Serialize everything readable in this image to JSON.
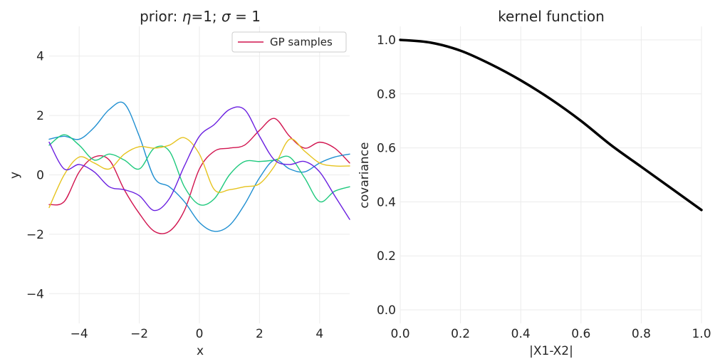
{
  "chart_data": [
    {
      "type": "line",
      "title_prefix": "prior: ",
      "title_eta": "η",
      "title_eq1": "=1; ",
      "title_sigma": "σ",
      "title_eq2": " = 1",
      "xlabel": "x",
      "ylabel": "y",
      "xlim": [
        -5,
        5
      ],
      "ylim": [
        -5,
        5
      ],
      "xticks": [
        -4,
        -2,
        0,
        2,
        4
      ],
      "xtick_labels": [
        "−4",
        "−2",
        "0",
        "2",
        "4"
      ],
      "yticks": [
        -4,
        -2,
        0,
        2,
        4
      ],
      "ytick_labels": [
        "−4",
        "−2",
        "0",
        "2",
        "4"
      ],
      "grid": true,
      "legend": {
        "placement": "top-right",
        "label": "GP samples",
        "color": "#d1144f"
      },
      "series": [
        {
          "name": "sample-red",
          "color": "#d1144f",
          "x": [
            -5,
            -4.5,
            -4,
            -3.5,
            -3,
            -2.5,
            -2,
            -1.5,
            -1,
            -0.5,
            0,
            0.5,
            1,
            1.5,
            2,
            2.5,
            3,
            3.5,
            4,
            4.5,
            5
          ],
          "y": [
            -1.0,
            -0.9,
            0.1,
            0.6,
            0.5,
            -0.5,
            -1.3,
            -1.9,
            -1.9,
            -1.2,
            0.2,
            0.8,
            0.9,
            1.0,
            1.5,
            1.9,
            1.3,
            0.9,
            1.1,
            0.9,
            0.4
          ]
        },
        {
          "name": "sample-blue",
          "color": "#1f8fd1",
          "x": [
            -5,
            -4.5,
            -4,
            -3.5,
            -3,
            -2.5,
            -2,
            -1.5,
            -1,
            -0.5,
            0,
            0.5,
            1,
            1.5,
            2,
            2.5,
            3,
            3.5,
            4,
            4.5,
            5
          ],
          "y": [
            1.2,
            1.3,
            1.2,
            1.6,
            2.2,
            2.4,
            1.3,
            -0.1,
            -0.4,
            -0.9,
            -1.6,
            -1.9,
            -1.7,
            -1.0,
            -0.1,
            0.5,
            0.2,
            0.1,
            0.4,
            0.6,
            0.7
          ]
        },
        {
          "name": "sample-green",
          "color": "#1ec97d",
          "x": [
            -5,
            -4.5,
            -4,
            -3.5,
            -3,
            -2.5,
            -2,
            -1.5,
            -1,
            -0.5,
            0,
            0.5,
            1,
            1.5,
            2,
            2.5,
            3,
            3.5,
            4,
            4.5,
            5
          ],
          "y": [
            1.0,
            1.35,
            1.0,
            0.5,
            0.7,
            0.5,
            0.2,
            0.9,
            0.8,
            -0.4,
            -1.0,
            -0.8,
            0.0,
            0.45,
            0.45,
            0.5,
            0.6,
            -0.1,
            -0.9,
            -0.55,
            -0.4
          ]
        },
        {
          "name": "sample-yellow",
          "color": "#e6c31e",
          "x": [
            -5,
            -4.5,
            -4,
            -3.5,
            -3,
            -2.5,
            -2,
            -1.5,
            -1,
            -0.5,
            0,
            0.5,
            1,
            1.5,
            2,
            2.5,
            3,
            3.5,
            4,
            4.5,
            5
          ],
          "y": [
            -1.1,
            0.0,
            0.6,
            0.4,
            0.2,
            0.7,
            0.95,
            0.9,
            1.0,
            1.25,
            0.7,
            -0.5,
            -0.5,
            -0.4,
            -0.3,
            0.3,
            1.2,
            0.8,
            0.4,
            0.3,
            0.3
          ]
        },
        {
          "name": "sample-purple",
          "color": "#6a1fe0",
          "x": [
            -5,
            -4.5,
            -4,
            -3.5,
            -3,
            -2.5,
            -2,
            -1.5,
            -1,
            -0.5,
            0,
            0.5,
            1,
            1.5,
            2,
            2.5,
            3,
            3.5,
            4,
            4.5,
            5
          ],
          "y": [
            1.1,
            0.2,
            0.35,
            0.1,
            -0.4,
            -0.5,
            -0.7,
            -1.2,
            -0.8,
            0.3,
            1.3,
            1.7,
            2.2,
            2.2,
            1.3,
            0.5,
            0.35,
            0.45,
            0.1,
            -0.7,
            -1.5
          ]
        }
      ]
    },
    {
      "type": "line",
      "title": "kernel function",
      "xlabel": "|X1-X2|",
      "ylabel": "covariance",
      "xlim": [
        0,
        1
      ],
      "ylim": [
        -0.05,
        1.05
      ],
      "xticks": [
        0,
        0.2,
        0.4,
        0.6,
        0.8,
        1.0
      ],
      "xtick_labels": [
        "0.0",
        "0.2",
        "0.4",
        "0.6",
        "0.8",
        "1.0"
      ],
      "yticks": [
        0,
        0.2,
        0.4,
        0.6,
        0.8,
        1.0
      ],
      "ytick_labels": [
        "0.0",
        "0.2",
        "0.4",
        "0.6",
        "0.8",
        "1.0"
      ],
      "grid": true,
      "series": [
        {
          "name": "kernel",
          "color": "#000000",
          "x": [
            0,
            0.1,
            0.2,
            0.3,
            0.4,
            0.5,
            0.6,
            0.7,
            0.8,
            0.9,
            1.0
          ],
          "y": [
            1.0,
            0.99,
            0.96,
            0.91,
            0.85,
            0.78,
            0.7,
            0.61,
            0.53,
            0.45,
            0.37
          ]
        }
      ]
    }
  ]
}
